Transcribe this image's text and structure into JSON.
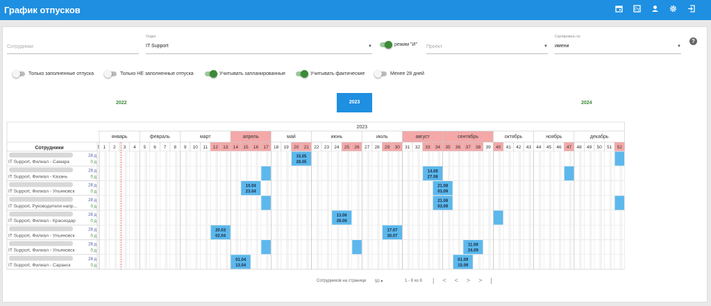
{
  "app": {
    "title": "График отпусков"
  },
  "toolbar_icons": [
    "calendar-icon",
    "report-icon",
    "user-icon",
    "gear-icon",
    "logout-icon"
  ],
  "filters": {
    "employees_placeholder": "Сотрудники",
    "department_label": "Отдел",
    "department_value": "IT Support",
    "mode_label": "режим \"И\"",
    "project_placeholder": "Проект",
    "sort_label": "Сортировать по",
    "sort_value": "имени"
  },
  "toggles": [
    {
      "label": "Только заполненные отпуска",
      "on": false
    },
    {
      "label": "Только НЕ заполненные отпуска",
      "on": false
    },
    {
      "label": "Учитывать запланированные",
      "on": true
    },
    {
      "label": "Учитывать фактические",
      "on": true
    },
    {
      "label": "Менее 28 дней",
      "on": false
    }
  ],
  "years": {
    "prev": "2022",
    "current": "2023",
    "next": "2024"
  },
  "grid": {
    "year": "2023",
    "employees_header": "Сотрудники",
    "months": [
      "январь",
      "февраль",
      "март",
      "апрель",
      "май",
      "июнь",
      "июль",
      "август",
      "сентябрь",
      "октябрь",
      "ноябрь",
      "декабрь"
    ],
    "highlight_months": [
      3,
      7,
      8
    ],
    "first_col_label": "5",
    "weeks": [
      1,
      2,
      3,
      4,
      5,
      6,
      7,
      8,
      9,
      10,
      11,
      12,
      13,
      14,
      15,
      16,
      17,
      18,
      19,
      20,
      21,
      22,
      23,
      24,
      25,
      26,
      27,
      28,
      29,
      30,
      31,
      32,
      33,
      34,
      35,
      36,
      37,
      38,
      39,
      40,
      41,
      42,
      43,
      44,
      45,
      46,
      47,
      48,
      49,
      50,
      51,
      52
    ],
    "highlight_weeks": [
      12,
      13,
      14,
      15,
      16,
      17,
      20,
      21,
      25,
      26,
      29,
      30,
      33,
      34,
      35,
      36,
      37,
      38,
      40,
      47,
      52
    ],
    "rows": [
      {
        "dept": "IT Support, Филиал - Самара",
        "days_total": "28 д",
        "days_left": "0 д",
        "vacations": [
          {
            "from": 20,
            "to": 21,
            "start": "15.05",
            "end": "28.05"
          },
          {
            "from": 52,
            "to": 52
          }
        ]
      },
      {
        "dept": "IT Support, Филиал - Казань",
        "days_total": "28 д",
        "days_left": "0 д",
        "vacations": [
          {
            "from": 17,
            "to": 17
          },
          {
            "from": 33,
            "to": 34,
            "start": "14.08",
            "end": "27.08"
          },
          {
            "from": 47,
            "to": 47
          }
        ]
      },
      {
        "dept": "IT Support, Филиал - Ульяновск",
        "days_total": "28 д",
        "days_left": "0 д",
        "vacations": [
          {
            "from": 15,
            "to": 16,
            "start": "10.04",
            "end": "23.04"
          },
          {
            "from": 34,
            "to": 35,
            "start": "21.08",
            "end": "03.09"
          }
        ]
      },
      {
        "dept": "IT Support, Руководители напр...",
        "days_total": "28 д",
        "days_left": "0 д",
        "vacations": [
          {
            "from": 17,
            "to": 17
          },
          {
            "from": 34,
            "to": 35,
            "start": "21.08",
            "end": "03.09"
          },
          {
            "from": 52,
            "to": 52
          }
        ]
      },
      {
        "dept": "IT Support, Филиал - Краснодар",
        "days_total": "28 д",
        "days_left": "0 д",
        "vacations": [
          {
            "from": 24,
            "to": 25,
            "start": "13.06",
            "end": "26.06"
          },
          {
            "from": 40,
            "to": 40
          }
        ]
      },
      {
        "dept": "IT Support, Филиал - Ульяновск",
        "days_total": "28 д",
        "days_left": "0 д",
        "vacations": [
          {
            "from": 12,
            "to": 13,
            "start": "20.03",
            "end": "02.04"
          },
          {
            "from": 29,
            "to": 30,
            "start": "17.07",
            "end": "30.07"
          }
        ]
      },
      {
        "dept": "IT Support, Филиал - Ульяновск",
        "days_total": "28 д",
        "days_left": "0 д",
        "vacations": [
          {
            "from": 17,
            "to": 17
          },
          {
            "from": 26,
            "to": 26
          },
          {
            "from": 37,
            "to": 38,
            "start": "11.09",
            "end": "24.09"
          }
        ]
      },
      {
        "dept": "IT Support, Филиал - Саранск",
        "days_total": "28 д",
        "days_left": "0 д",
        "vacations": [
          {
            "from": 14,
            "to": 15,
            "start": "01.04",
            "end": "13.04"
          },
          {
            "from": 36,
            "to": 37,
            "start": "01.09",
            "end": "15.09"
          }
        ]
      }
    ]
  },
  "pagination": {
    "per_page_label": "Сотрудников на странице",
    "per_page_value": "50",
    "range": "1 - 8 из 8"
  },
  "colors": {
    "accent": "#1e8fe1",
    "vacation": "#5cb8ec",
    "highlight": "#f4a8a8",
    "green": "#3a8a36"
  }
}
